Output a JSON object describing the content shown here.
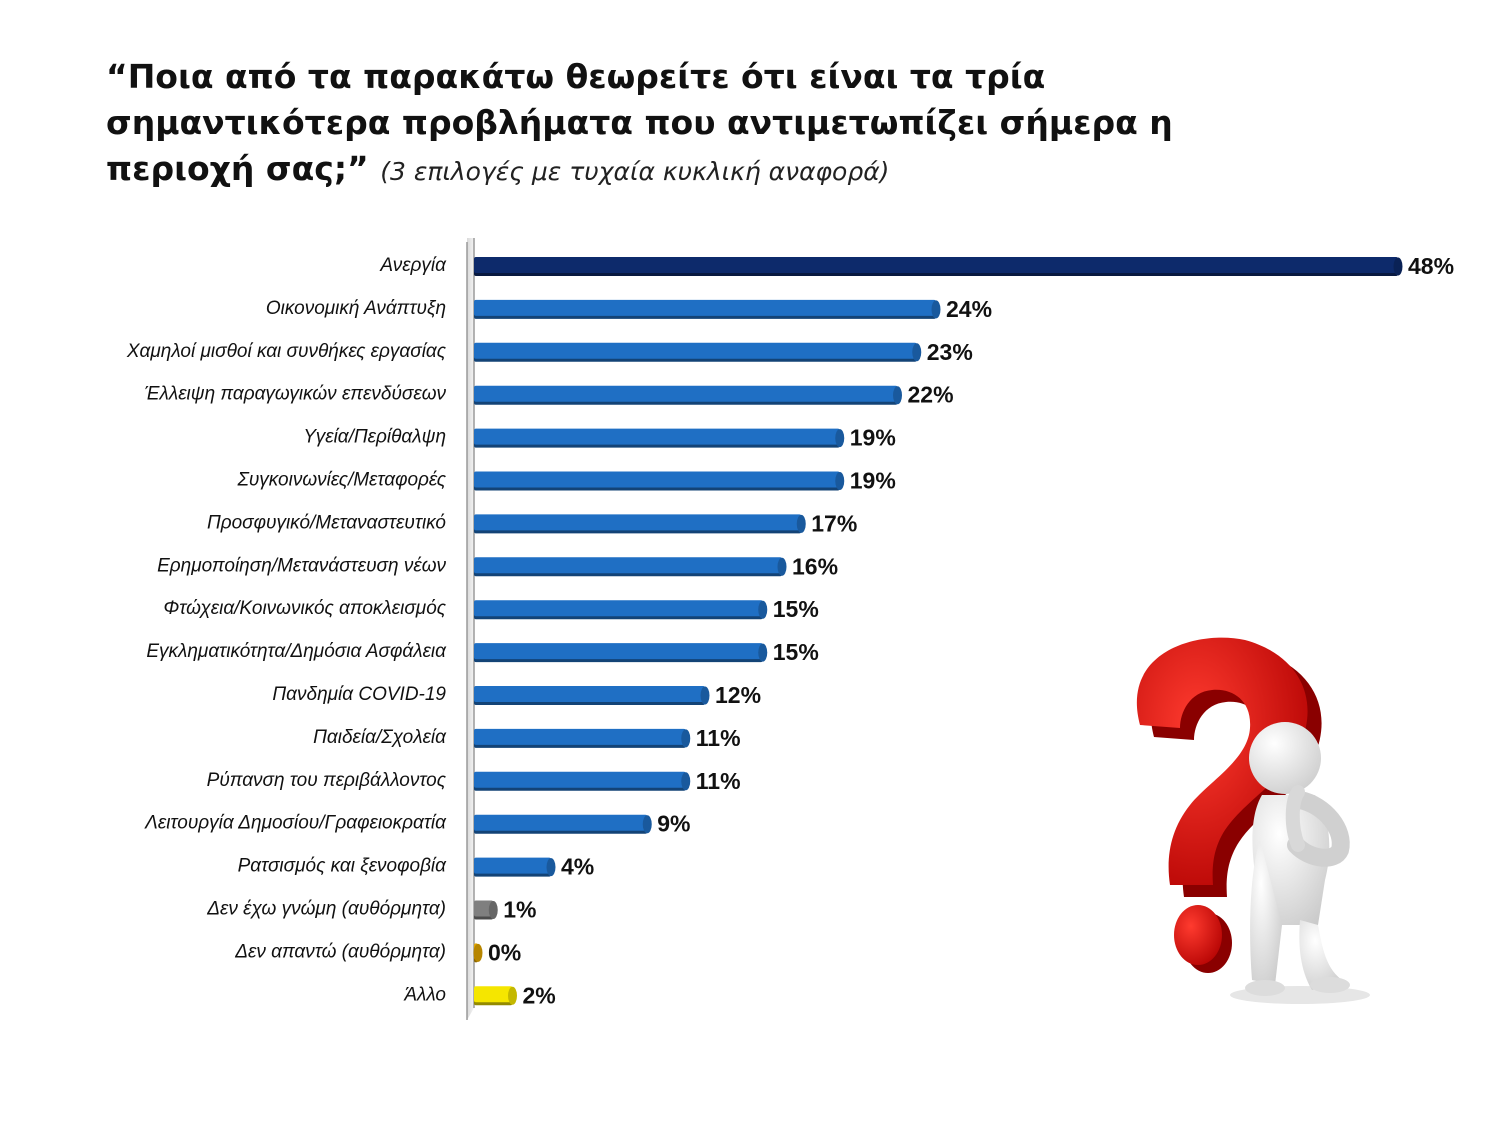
{
  "title": {
    "main": "“Ποια από τα παρακάτω θεωρείτε ότι είναι τα τρία σημαντικότερα προβλήματα που αντιμετωπίζει σήμερα η περιοχή σας;”",
    "note": "(3 επιλογές με τυχαία κυκλική αναφορά)"
  },
  "colors": {
    "top": "#0d2a6b",
    "main": "#1f6fc4",
    "no_opinion": "#7f7f7f",
    "no_answer": "#e5a800",
    "other": "#f5e600"
  },
  "chart_data": {
    "type": "bar",
    "orientation": "horizontal",
    "title": "“Ποια από τα παρακάτω θεωρείτε ότι είναι τα τρία σημαντικότερα προβλήματα που αντιμετωπίζει σήμερα η περιοχή σας;” (3 επιλογές με τυχαία κυκλική αναφορά)",
    "xlabel": "",
    "ylabel": "",
    "unit": "%",
    "xlim": [
      0,
      48
    ],
    "grid": false,
    "categories": [
      "Ανεργία",
      "Οικονομική Ανάπτυξη",
      "Χαμηλοί μισθοί και συνθήκες εργασίας",
      "Έλλειψη παραγωγικών επενδύσεων",
      "Υγεία/Περίθαλψη",
      "Συγκοινωνίες/Μεταφορές",
      "Προσφυγικό/Μεταναστευτικό",
      "Ερημοποίηση/Μετανάστευση νέων",
      "Φτώχεια/Κοινωνικός αποκλεισμός",
      "Εγκληματικότητα/Δημόσια Ασφάλεια",
      "Πανδημία COVID-19",
      "Παιδεία/Σχολεία",
      "Ρύπανση του περιβάλλοντος",
      "Λειτουργία Δημοσίου/Γραφειοκρατία",
      "Ρατσισμός και ξενοφοβία",
      "Δεν έχω γνώμη (αυθόρμητα)",
      "Δεν απαντώ (αυθόρμητα)",
      "Άλλο"
    ],
    "values": [
      48,
      24,
      23,
      22,
      19,
      19,
      17,
      16,
      15,
      15,
      12,
      11,
      11,
      9,
      4,
      1,
      0,
      2
    ],
    "value_labels": [
      "48%",
      "24%",
      "23%",
      "22%",
      "19%",
      "19%",
      "17%",
      "16%",
      "15%",
      "15%",
      "12%",
      "11%",
      "11%",
      "9%",
      "4%",
      "1%",
      "0%",
      "2%"
    ],
    "bar_colors": [
      "top",
      "main",
      "main",
      "main",
      "main",
      "main",
      "main",
      "main",
      "main",
      "main",
      "main",
      "main",
      "main",
      "main",
      "main",
      "no_opinion",
      "no_answer",
      "other"
    ]
  }
}
